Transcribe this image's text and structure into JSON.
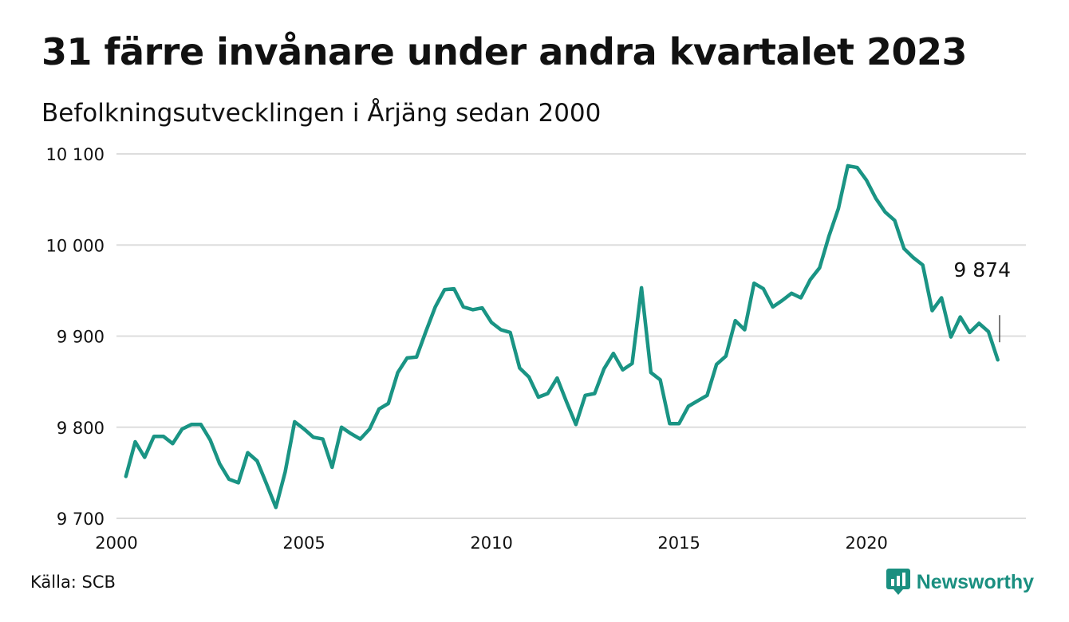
{
  "title": "31 färre invånare under andra kvartalet 2023",
  "subtitle": "Befolkningsutvecklingen i Årjäng sedan 2000",
  "source": "Källa: SCB",
  "brand": "Newsworthy",
  "colors": {
    "line": "#1a9484",
    "grid": "#dddddd",
    "brand": "#1a8f80"
  },
  "chart_data": {
    "type": "line",
    "title": "31 färre invånare under andra kvartalet 2023",
    "xlabel": "",
    "ylabel": "",
    "xlim": [
      2000,
      2024.25
    ],
    "ylim": [
      9700,
      10100
    ],
    "yticks": [
      9700,
      9800,
      9900,
      10000,
      10100
    ],
    "ytick_labels": [
      "9 700",
      "9 800",
      "9 900",
      "10 000",
      "10 100"
    ],
    "xticks": [
      2000,
      2005,
      2010,
      2015,
      2020
    ],
    "xtick_labels": [
      "2000",
      "2005",
      "2010",
      "2015",
      "2020"
    ],
    "grid": "horizontal",
    "last_value_label": "9 874",
    "x": [
      2000.25,
      2000.5,
      2000.75,
      2001.0,
      2001.25,
      2001.5,
      2001.75,
      2002.0,
      2002.25,
      2002.5,
      2002.75,
      2003.0,
      2003.25,
      2003.5,
      2003.75,
      2004.0,
      2004.25,
      2004.5,
      2004.75,
      2005.0,
      2005.25,
      2005.5,
      2005.75,
      2006.0,
      2006.25,
      2006.5,
      2006.75,
      2007.0,
      2007.25,
      2007.5,
      2007.75,
      2008.0,
      2008.25,
      2008.5,
      2008.75,
      2009.0,
      2009.25,
      2009.5,
      2009.75,
      2010.0,
      2010.25,
      2010.5,
      2010.75,
      2011.0,
      2011.25,
      2011.5,
      2011.75,
      2012.0,
      2012.25,
      2012.5,
      2012.75,
      2013.0,
      2013.25,
      2013.5,
      2013.75,
      2014.0,
      2014.25,
      2014.5,
      2014.75,
      2015.0,
      2015.25,
      2015.5,
      2015.75,
      2016.0,
      2016.25,
      2016.5,
      2016.75,
      2017.0,
      2017.25,
      2017.5,
      2017.75,
      2018.0,
      2018.25,
      2018.5,
      2018.75,
      2019.0,
      2019.25,
      2019.5,
      2019.75,
      2020.0,
      2020.25,
      2020.5,
      2020.75,
      2021.0,
      2021.25,
      2021.5,
      2021.75,
      2022.0,
      2022.25,
      2022.5,
      2022.75,
      2023.0,
      2023.25,
      2023.5
    ],
    "series": [
      {
        "values": [
          9746,
          9784,
          9767,
          9790,
          9790,
          9782,
          9798,
          9803,
          9803,
          9786,
          9760,
          9743,
          9739,
          9772,
          9763,
          9738,
          9712,
          9751,
          9806,
          9798,
          9789,
          9787,
          9756,
          9800,
          9793,
          9787,
          9798,
          9820,
          9826,
          9860,
          9876,
          9877,
          9905,
          9932,
          9951,
          9952,
          9932,
          9929,
          9931,
          9915,
          9907,
          9904,
          9865,
          9855,
          9833,
          9837,
          9854,
          9828,
          9803,
          9835,
          9837,
          9864,
          9881,
          9863,
          9870,
          9953,
          9860,
          9852,
          9804,
          9804,
          9823,
          9829,
          9835,
          9869,
          9878,
          9917,
          9907,
          9958,
          9952,
          9932,
          9939,
          9947,
          9942,
          9962,
          9975,
          10010,
          10040,
          10087,
          10085,
          10071,
          10051,
          10036,
          10027,
          9996,
          9986,
          9978,
          9928,
          9942,
          9899,
          9921,
          9904,
          9914,
          9905,
          9874
        ]
      }
    ]
  }
}
